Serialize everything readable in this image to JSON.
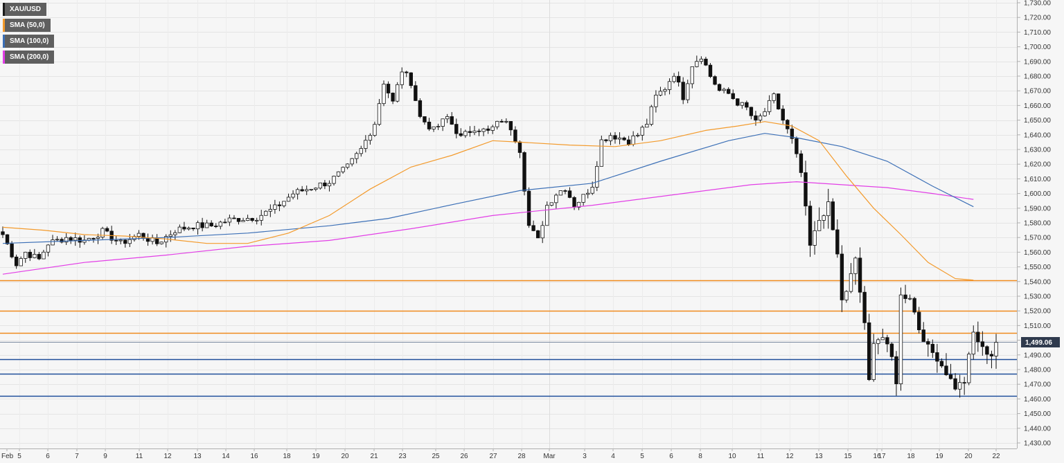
{
  "legend": {
    "items": [
      {
        "label": "XAU/USD",
        "color": "#1a1a1a"
      },
      {
        "label": "SMA (50,0)",
        "color": "#f39a2b"
      },
      {
        "label": "SMA (100,0)",
        "color": "#3b6fb6"
      },
      {
        "label": "SMA (200,0)",
        "color": "#e23ee6"
      }
    ]
  },
  "current_price": {
    "label": "1,499.06",
    "value": 1499.06
  },
  "chart_data": {
    "type": "candlestick",
    "symbol": "XAU/USD",
    "y_axis": {
      "min": 1430,
      "max": 1730,
      "step": 10,
      "tick_labels": [
        "1,430.00",
        "1,440.00",
        "1,450.00",
        "1,460.00",
        "1,470.00",
        "1,480.00",
        "1,490.00",
        "1,500.00",
        "1,510.00",
        "1,520.00",
        "1,530.00",
        "1,540.00",
        "1,550.00",
        "1,560.00",
        "1,570.00",
        "1,580.00",
        "1,590.00",
        "1,600.00",
        "1,610.00",
        "1,620.00",
        "1,630.00",
        "1,640.00",
        "1,650.00",
        "1,660.00",
        "1,670.00",
        "1,680.00",
        "1,690.00",
        "1,700.00",
        "1,710.00",
        "1,720.00",
        "1,730.00"
      ]
    },
    "x_axis": {
      "labels": [
        "Feb",
        "5",
        "6",
        "7",
        "9",
        "11",
        "12",
        "13",
        "14",
        "16",
        "18",
        "19",
        "20",
        "21",
        "23",
        "25",
        "26",
        "27",
        "28",
        "Mar",
        "3",
        "4",
        "5",
        "6",
        "8",
        "10",
        "11",
        "12",
        "13",
        "15",
        "16",
        "17",
        "18",
        "19",
        "20",
        "22"
      ]
    },
    "grid": true,
    "horizontal_levels": [
      {
        "value": 1541,
        "color": "#f08a1c"
      },
      {
        "value": 1520,
        "color": "#f08a1c"
      },
      {
        "value": 1505,
        "color": "#f08a1c"
      },
      {
        "value": 1487,
        "color": "#1f4e9a"
      },
      {
        "value": 1477,
        "color": "#1f4e9a"
      },
      {
        "value": 1462,
        "color": "#1f4e9a"
      }
    ],
    "price_anchors": [
      [
        0,
        1572
      ],
      [
        3,
        1552
      ],
      [
        5,
        1560
      ],
      [
        8,
        1555
      ],
      [
        10,
        1566
      ],
      [
        14,
        1570
      ],
      [
        18,
        1568
      ],
      [
        22,
        1574
      ],
      [
        26,
        1566
      ],
      [
        30,
        1572
      ],
      [
        34,
        1566
      ],
      [
        38,
        1575
      ],
      [
        42,
        1578
      ],
      [
        46,
        1578
      ],
      [
        50,
        1582
      ],
      [
        56,
        1584
      ],
      [
        60,
        1590
      ],
      [
        64,
        1600
      ],
      [
        68,
        1604
      ],
      [
        72,
        1608
      ],
      [
        76,
        1618
      ],
      [
        79,
        1630
      ],
      [
        82,
        1648
      ],
      [
        84,
        1676
      ],
      [
        86,
        1662
      ],
      [
        88,
        1684
      ],
      [
        90,
        1676
      ],
      [
        92,
        1652
      ],
      [
        95,
        1643
      ],
      [
        98,
        1652
      ],
      [
        101,
        1638
      ],
      [
        104,
        1645
      ],
      [
        107,
        1642
      ],
      [
        110,
        1650
      ],
      [
        112,
        1645
      ],
      [
        114,
        1630
      ],
      [
        116,
        1578
      ],
      [
        118,
        1568
      ],
      [
        120,
        1592
      ],
      [
        122,
        1600
      ],
      [
        124,
        1604
      ],
      [
        126,
        1592
      ],
      [
        128,
        1598
      ],
      [
        130,
        1606
      ],
      [
        132,
        1636
      ],
      [
        134,
        1640
      ],
      [
        136,
        1638
      ],
      [
        138,
        1636
      ],
      [
        140,
        1640
      ],
      [
        142,
        1648
      ],
      [
        144,
        1666
      ],
      [
        146,
        1672
      ],
      [
        148,
        1682
      ],
      [
        150,
        1666
      ],
      [
        152,
        1688
      ],
      [
        154,
        1694
      ],
      [
        156,
        1680
      ],
      [
        158,
        1670
      ],
      [
        160,
        1668
      ],
      [
        162,
        1662
      ],
      [
        164,
        1658
      ],
      [
        166,
        1648
      ],
      [
        168,
        1656
      ],
      [
        170,
        1666
      ],
      [
        172,
        1650
      ],
      [
        174,
        1636
      ],
      [
        176,
        1614
      ],
      [
        178,
        1564
      ],
      [
        180,
        1582
      ],
      [
        182,
        1592
      ],
      [
        184,
        1558
      ],
      [
        185,
        1528
      ],
      [
        186,
        1532
      ],
      [
        188,
        1556
      ],
      [
        190,
        1510
      ],
      [
        191,
        1472
      ],
      [
        192,
        1500
      ],
      [
        194,
        1502
      ],
      [
        196,
        1488
      ],
      [
        197,
        1472
      ],
      [
        198,
        1530
      ],
      [
        200,
        1530
      ],
      [
        202,
        1508
      ],
      [
        204,
        1495
      ],
      [
        206,
        1488
      ],
      [
        208,
        1478
      ],
      [
        210,
        1468
      ],
      [
        212,
        1472
      ],
      [
        214,
        1505
      ],
      [
        216,
        1494
      ],
      [
        218,
        1490
      ],
      [
        219,
        1499
      ]
    ],
    "n_candles": 220,
    "seed": 7,
    "sma_50": [
      [
        0,
        1577
      ],
      [
        9,
        1575
      ],
      [
        18,
        1572
      ],
      [
        27,
        1571
      ],
      [
        36,
        1569
      ],
      [
        45,
        1566
      ],
      [
        54,
        1566
      ],
      [
        63,
        1573
      ],
      [
        72,
        1585
      ],
      [
        81,
        1603
      ],
      [
        90,
        1618
      ],
      [
        99,
        1626
      ],
      [
        108,
        1636
      ],
      [
        114,
        1635
      ],
      [
        125,
        1633
      ],
      [
        135,
        1632
      ],
      [
        145,
        1636
      ],
      [
        155,
        1643
      ],
      [
        162,
        1646
      ],
      [
        168,
        1649
      ],
      [
        174,
        1646
      ],
      [
        180,
        1636
      ],
      [
        186,
        1612
      ],
      [
        192,
        1590
      ],
      [
        198,
        1572
      ],
      [
        204,
        1553
      ],
      [
        210,
        1542
      ],
      [
        214,
        1541
      ]
    ],
    "sma_100": [
      [
        0,
        1566
      ],
      [
        18,
        1568
      ],
      [
        36,
        1570
      ],
      [
        54,
        1573
      ],
      [
        72,
        1578
      ],
      [
        85,
        1583
      ],
      [
        100,
        1593
      ],
      [
        114,
        1602
      ],
      [
        130,
        1607
      ],
      [
        145,
        1622
      ],
      [
        160,
        1636
      ],
      [
        168,
        1641
      ],
      [
        175,
        1638
      ],
      [
        185,
        1632
      ],
      [
        195,
        1622
      ],
      [
        205,
        1605
      ],
      [
        214,
        1591
      ]
    ],
    "sma_200": [
      [
        0,
        1545
      ],
      [
        18,
        1553
      ],
      [
        36,
        1558
      ],
      [
        54,
        1564
      ],
      [
        72,
        1568
      ],
      [
        90,
        1576
      ],
      [
        108,
        1585
      ],
      [
        130,
        1592
      ],
      [
        150,
        1600
      ],
      [
        165,
        1606
      ],
      [
        175,
        1608
      ],
      [
        185,
        1606
      ],
      [
        195,
        1604
      ],
      [
        205,
        1600
      ],
      [
        214,
        1596
      ]
    ]
  }
}
